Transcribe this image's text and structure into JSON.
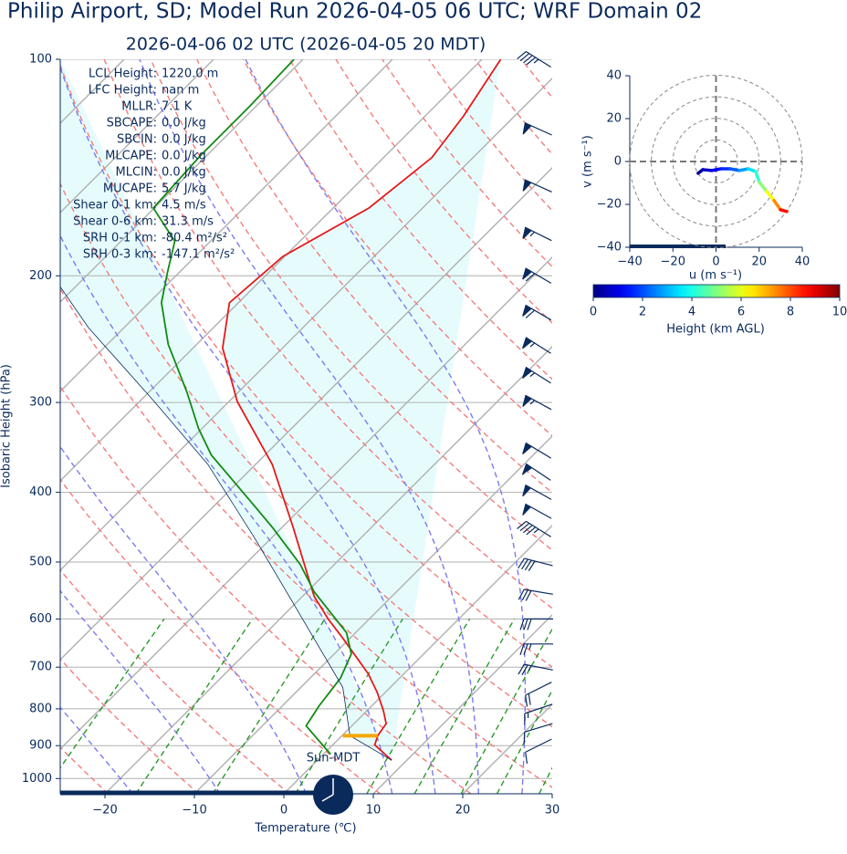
{
  "chart_data": [
    {
      "type": "skewt",
      "title": "Philip Airport, SD; Model Run 2026-04-05 06 UTC; WRF Domain 02",
      "subtitle": "2026-04-06 02 UTC  (2026-04-05 20 MDT)",
      "x_label": "Temperature (℃)",
      "y_label": "Isobaric Height (hPa)",
      "xlim": [
        -25,
        30
      ],
      "ylim": [
        1050,
        100
      ],
      "log_y": true,
      "skew": 45,
      "grid": true,
      "xticks": [
        {
          "value": -20,
          "label": "−20"
        },
        {
          "value": -10,
          "label": "−10"
        },
        0,
        10,
        20,
        30
      ],
      "yticks": [
        100,
        200,
        300,
        400,
        500,
        600,
        700,
        800,
        900,
        1000
      ],
      "series": [
        {
          "color": "#e31a1c",
          "pressure": [
            943,
            898,
            872,
            839,
            804,
            759,
            715,
            671,
            636,
            600,
            558,
            519,
            448,
            366,
            299,
            252,
            218,
            188,
            161,
            137,
            120,
            100
          ],
          "values": [
            8.3,
            4.7,
            4.0,
            3.6,
            1.8,
            -0.9,
            -4.0,
            -7.8,
            -11.0,
            -14.6,
            -18.7,
            -22.0,
            -28.7,
            -38.1,
            -49.1,
            -56.7,
            -61.0,
            -60.2,
            -56.0,
            -54.6,
            -55.7,
            -57.9
          ]
        },
        {
          "color": "#138a13",
          "pressure": [
            925,
            845,
            792,
            762,
            725,
            671,
            627,
            592,
            550,
            504,
            448,
            417,
            355,
            326,
            290,
            249,
            218,
            198,
            179,
            161,
            136,
            116,
            100
          ],
          "values": [
            0.8,
            -5.1,
            -5.9,
            -6.2,
            -6.6,
            -8.1,
            -11.0,
            -14.6,
            -19.2,
            -23.8,
            -31.0,
            -35.6,
            -46.0,
            -50.4,
            -55.8,
            -63.2,
            -68.6,
            -71.3,
            -74.0,
            -80.1,
            -80.7,
            -80.7,
            -81.0
          ]
        },
        {
          "color": "#0a2a5c",
          "pressure": [
            943,
            872,
            747,
            566,
            462,
            366,
            298,
            236,
            204
          ],
          "values": [
            8.3,
            0.9,
            -5.3,
            -20.7,
            -32.0,
            -45.3,
            -58.6,
            -74.0,
            -82.6
          ]
        }
      ],
      "shade_color": "#e6fcfc",
      "surface_layer": {
        "pressure": 872,
        "values": [
          0.1,
          4.0
        ],
        "color": "#f5a800"
      },
      "isotherms": [
        -110,
        -100,
        -90,
        -80,
        -70,
        -60,
        -50,
        -40,
        -30,
        -20,
        -10,
        0,
        10,
        20,
        30
      ],
      "dry_adiabats": [
        250,
        260,
        270,
        280,
        290,
        300,
        310,
        320,
        330,
        340,
        350,
        360,
        370,
        380,
        390,
        400,
        410,
        420,
        430,
        440,
        450
      ],
      "moist_adiabats": [
        -20,
        -10,
        0,
        10,
        15,
        20,
        25
      ],
      "mixing_ratios": [
        0.4,
        1,
        2,
        4,
        7,
        10,
        14,
        18,
        24
      ],
      "mixing_ratio_top": 600,
      "annotations": [
        {
          "label": "LCL Height:",
          "value": "1220.0 m"
        },
        {
          "label": "LFC Height:",
          "value": "nan m"
        },
        {
          "label": "MLLR:",
          "value": "7.1 K"
        },
        {
          "label": "SBCAPE:",
          "value": "0.0 J/kg"
        },
        {
          "label": "SBCIN:",
          "value": "0.0 J/kg"
        },
        {
          "label": "MLCAPE:",
          "value": "0.0 J/kg"
        },
        {
          "label": "MLCIN:",
          "value": "0.0 J/kg"
        },
        {
          "label": "MUCAPE:",
          "value": "5.7 J/kg"
        },
        {
          "label": "Shear 0-1 km:",
          "value": "4.5 m/s"
        },
        {
          "label": "Shear 0-6 km:",
          "value": "31.3 m/s"
        },
        {
          "label": "SRH 0-1 km:",
          "value": "-80.4 m²/s²"
        },
        {
          "label": "SRH 0-3 km:",
          "value": "-147.1 m²/s²"
        }
      ],
      "time_label": "Sun-MDT",
      "winds": {
        "color": "#0a2a5c",
        "pressure": [
          100,
          125,
          150,
          175,
          200,
          225,
          250,
          275,
          300,
          350,
          375,
          400,
          425,
          450,
          500,
          550,
          600,
          650,
          700,
          750,
          800,
          850,
          900
        ],
        "u": [
          40,
          55,
          55,
          60,
          60,
          60,
          55,
          55,
          55,
          50,
          45,
          45,
          45,
          40,
          40,
          30,
          30,
          25,
          25,
          20,
          15,
          10,
          10
        ],
        "v": [
          -25,
          -25,
          -25,
          -30,
          -35,
          -35,
          -35,
          -35,
          -30,
          -30,
          -30,
          -25,
          -25,
          -25,
          -10,
          -5,
          0,
          0,
          -5,
          10,
          5,
          3,
          5
        ]
      }
    },
    {
      "type": "hodograph",
      "xlim": [
        -40,
        40
      ],
      "ylim": [
        -40,
        40
      ],
      "xticks": [
        {
          "value": -40,
          "label": "−40"
        },
        {
          "value": -20,
          "label": "−20"
        },
        0,
        20,
        40
      ],
      "yticks": [
        {
          "value": -40,
          "label": "−40"
        },
        {
          "value": -20,
          "label": "−20"
        },
        0,
        20,
        40
      ],
      "x_label": "u (m s⁻¹)",
      "y_label": "v (m s⁻¹)",
      "rings": [
        10,
        20,
        30,
        40
      ],
      "u": [
        -8.3,
        -6.1,
        -1.9,
        2.3,
        6.6,
        10.8,
        15.0,
        18.4,
        20.1,
        23.5,
        26.9,
        29.9,
        32.8
      ],
      "v": [
        -5.5,
        -3.8,
        -4.2,
        -3.4,
        -3.4,
        -4.2,
        -3.4,
        -4.7,
        -9.7,
        -14.0,
        -18.2,
        -22.5,
        -23.3
      ],
      "heights": [
        0,
        0.4,
        0.9,
        1.4,
        1.9,
        2.4,
        3.2,
        3.8,
        4.6,
        5.6,
        6.8,
        8.0,
        9.2
      ],
      "colormap": "jet",
      "colorbar": {
        "label": "Height (km AGL)",
        "lim": [
          0,
          10
        ],
        "ticks": [
          0,
          2,
          4,
          6,
          8,
          10
        ]
      }
    }
  ]
}
